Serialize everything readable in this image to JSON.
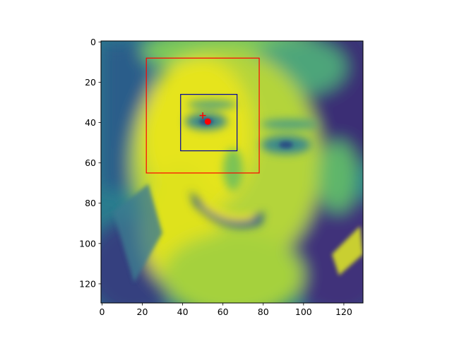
{
  "chart_data": {
    "type": "image",
    "colormap": "viridis",
    "extent": {
      "x": [
        -0.5,
        129.5
      ],
      "y": [
        129.5,
        -0.5
      ]
    },
    "xlim": [
      -0.5,
      129.5
    ],
    "ylim": [
      129.5,
      -0.5
    ],
    "xticks": [
      0,
      20,
      40,
      60,
      80,
      100,
      120
    ],
    "yticks": [
      0,
      20,
      40,
      60,
      80,
      100,
      120
    ],
    "xtick_labels": [
      "0",
      "20",
      "40",
      "60",
      "80",
      "100",
      "120"
    ],
    "ytick_labels": [
      "0",
      "20",
      "40",
      "60",
      "80",
      "100",
      "120"
    ],
    "grid": false,
    "image_content": "grayscale portrait of a smiling face rendered in viridis colormap",
    "rectangles": [
      {
        "name": "outer-box",
        "color": "#ff0000",
        "x0": 22,
        "y0": 8,
        "x1": 78,
        "y1": 65
      },
      {
        "name": "inner-box",
        "color": "#0000a0",
        "x0": 39,
        "y0": 26,
        "x1": 67,
        "y1": 54
      }
    ],
    "markers": [
      {
        "name": "plus-marker",
        "shape": "plus",
        "color": "#ff0000",
        "x": 50,
        "y": 36.5
      },
      {
        "name": "dot-marker",
        "shape": "circle",
        "color": "#ff0000",
        "x": 52.5,
        "y": 39.5
      }
    ]
  }
}
